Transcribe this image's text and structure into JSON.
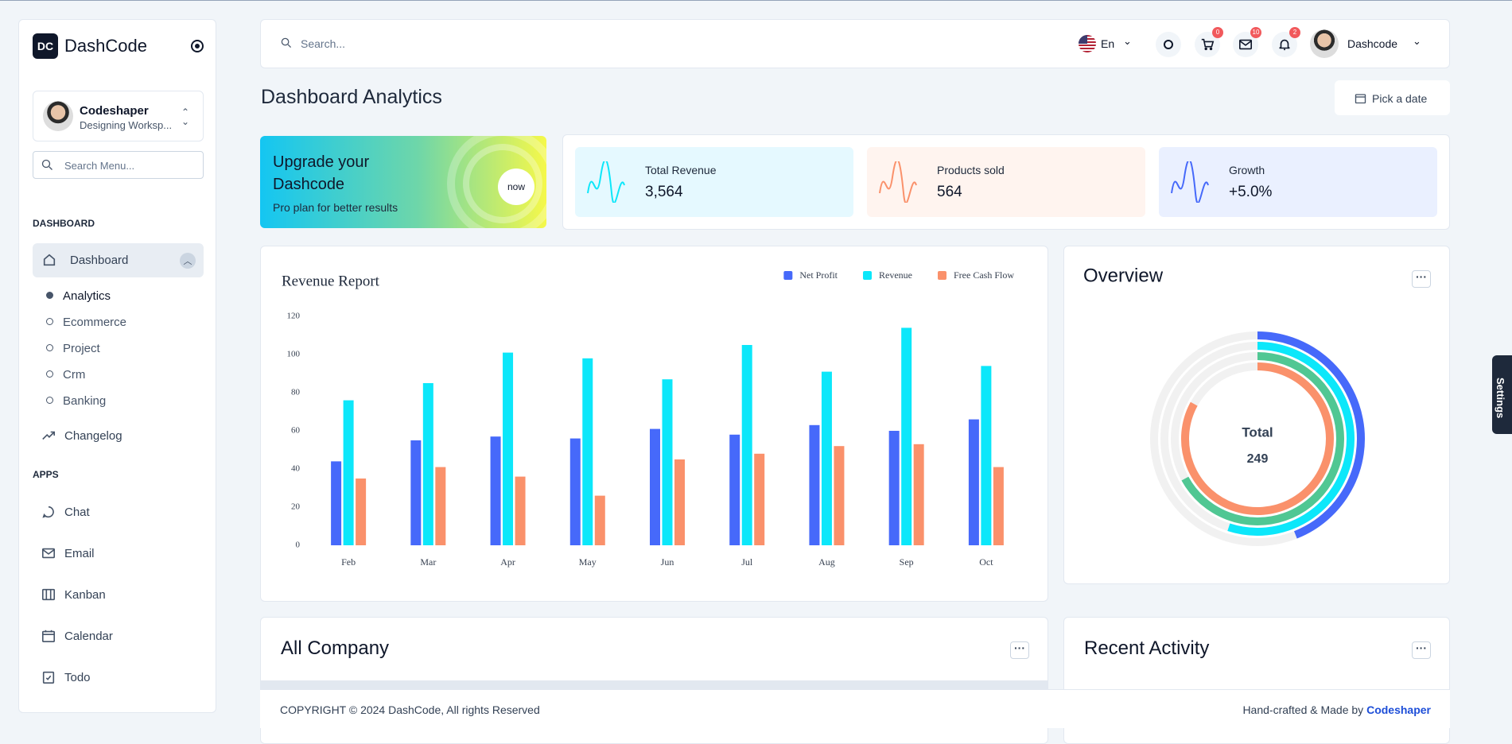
{
  "sidebar": {
    "brand": "DashCode",
    "user": {
      "name": "Codeshaper",
      "workspace": "Designing Worksp..."
    },
    "search_placeholder": "Search Menu...",
    "sections": [
      {
        "title": "DASHBOARD",
        "items": [
          {
            "label": "Dashboard",
            "children": [
              "Analytics",
              "Ecommerce",
              "Project",
              "Crm",
              "Banking"
            ]
          },
          {
            "label": "Changelog"
          }
        ]
      },
      {
        "title": "APPS",
        "items": [
          {
            "label": "Chat"
          },
          {
            "label": "Email"
          },
          {
            "label": "Kanban"
          },
          {
            "label": "Calendar"
          },
          {
            "label": "Todo"
          }
        ]
      }
    ]
  },
  "header": {
    "search_placeholder": "Search...",
    "language": "En",
    "badges": {
      "cart": 0,
      "mail": 10,
      "notifications": 2
    },
    "user": "Dashcode"
  },
  "page": {
    "title": "Dashboard Analytics",
    "date_button": "Pick a date"
  },
  "promo": {
    "title": "Upgrade your Dashcode",
    "subtitle": "Pro plan for better results",
    "badge": "now"
  },
  "stats": [
    {
      "label": "Total Revenue",
      "value": "3,564"
    },
    {
      "label": "Products sold",
      "value": "564"
    },
    {
      "label": "Growth",
      "value": "+5.0%"
    }
  ],
  "chart_data": [
    {
      "type": "bar",
      "title": "Revenue Report",
      "categories": [
        "Feb",
        "Mar",
        "Apr",
        "May",
        "Jun",
        "Jul",
        "Aug",
        "Sep",
        "Oct"
      ],
      "series": [
        {
          "name": "Net Profit",
          "color": "#4669fa",
          "values": [
            44,
            55,
            57,
            56,
            61,
            58,
            63,
            60,
            66
          ]
        },
        {
          "name": "Revenue",
          "color": "#0ce7fa",
          "values": [
            76,
            85,
            101,
            98,
            87,
            105,
            91,
            114,
            94
          ]
        },
        {
          "name": "Free Cash Flow",
          "color": "#fa916b",
          "values": [
            35,
            41,
            36,
            26,
            45,
            48,
            52,
            53,
            41
          ]
        }
      ],
      "ylim": [
        0,
        120
      ],
      "yticks": [
        0,
        20,
        40,
        60,
        80,
        100,
        120
      ],
      "legend": "top-right"
    },
    {
      "type": "radialBar",
      "title": "Overview",
      "values": [
        44,
        55,
        67,
        83
      ],
      "colors": [
        "#4669fa",
        "#0ce7fa",
        "#50c793",
        "#fa916b"
      ],
      "ylim": [
        0,
        100
      ],
      "center_label": "Total",
      "total": 249
    }
  ],
  "panels": {
    "company": "All Company",
    "activity": "Recent Activity"
  },
  "footer": {
    "copyright": "COPYRIGHT © 2024 DashCode, All rights Reserved",
    "credit": "Hand-crafted & Made by",
    "author": "Codeshaper"
  },
  "settings_tab": "Settings"
}
